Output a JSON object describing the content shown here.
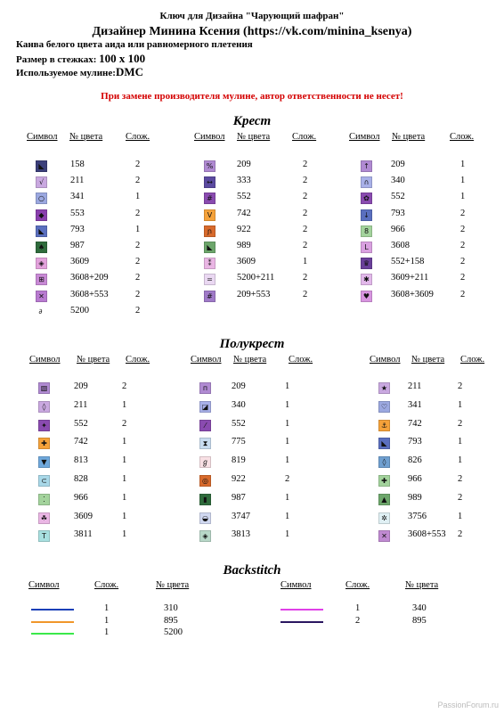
{
  "header": {
    "title": "Ключ для Дизайна \"Чарующий шафран\"",
    "designer": "Дизайнер Минина Ксения (https://vk.com/minina_ksenya)",
    "canvas": "Канва белого цвета аида или равномерного плетения",
    "size_label": "Размер в стежках:",
    "size_value": "100 x 100",
    "floss_label": "Используемое мулине:",
    "floss_value": "DMC",
    "warning": "При замене производителя мулине, автор ответственности не несет!"
  },
  "columns": {
    "symbol": "Символ",
    "color": "№ цвета",
    "complexity": "Слож."
  },
  "cross": {
    "title": "Крест",
    "col1": [
      {
        "color": "158",
        "n": "2",
        "bg": "#3b3f7a",
        "glyph": "◣"
      },
      {
        "color": "211",
        "n": "2",
        "bg": "#c9a8e0",
        "glyph": "√"
      },
      {
        "color": "341",
        "n": "1",
        "bg": "#9ba8e0",
        "glyph": "○"
      },
      {
        "color": "553",
        "n": "2",
        "bg": "#8a3fae",
        "glyph": "◆"
      },
      {
        "color": "793",
        "n": "1",
        "bg": "#5a6fbf",
        "glyph": "◣"
      },
      {
        "color": "987",
        "n": "2",
        "bg": "#2f6b3c",
        "glyph": "♠"
      },
      {
        "color": "3609",
        "n": "2",
        "bg": "#e3a2dc",
        "glyph": "◈"
      },
      {
        "color": "3608+209",
        "n": "2",
        "bg": "#c98ad6",
        "glyph": "⊞"
      },
      {
        "color": "3608+553",
        "n": "2",
        "bg": "#b87ad0",
        "glyph": "✕"
      },
      {
        "color": "5200",
        "n": "2",
        "bg": "#ffffff",
        "glyph": "∂"
      }
    ],
    "col2": [
      {
        "color": "209",
        "n": "2",
        "bg": "#b08ad2",
        "glyph": "%"
      },
      {
        "color": "333",
        "n": "2",
        "bg": "#5b4aa0",
        "glyph": "↔"
      },
      {
        "color": "552",
        "n": "2",
        "bg": "#8a4bb0",
        "glyph": "#"
      },
      {
        "color": "742",
        "n": "2",
        "bg": "#f5a23a",
        "glyph": "V"
      },
      {
        "color": "922",
        "n": "2",
        "bg": "#d86a2c",
        "glyph": "ɲ"
      },
      {
        "color": "989",
        "n": "2",
        "bg": "#6da66b",
        "glyph": "◣"
      },
      {
        "color": "3609",
        "n": "1",
        "bg": "#eab6e4",
        "glyph": "⁑"
      },
      {
        "color": "5200+211",
        "n": "2",
        "bg": "#ead8f2",
        "glyph": "="
      },
      {
        "color": "209+553",
        "n": "2",
        "bg": "#a07ac8",
        "glyph": "#"
      }
    ],
    "col3": [
      {
        "color": "209",
        "n": "1",
        "bg": "#b08ad2",
        "glyph": "↑"
      },
      {
        "color": "340",
        "n": "1",
        "bg": "#a8b0e8",
        "glyph": "∩"
      },
      {
        "color": "552",
        "n": "1",
        "bg": "#8a4bb0",
        "glyph": "✿"
      },
      {
        "color": "793",
        "n": "2",
        "bg": "#5a6fbf",
        "glyph": "↓"
      },
      {
        "color": "966",
        "n": "2",
        "bg": "#a3d39c",
        "glyph": "8"
      },
      {
        "color": "3608",
        "n": "2",
        "bg": "#d9a0e0",
        "glyph": "L"
      },
      {
        "color": "552+158",
        "n": "2",
        "bg": "#6a3f9a",
        "glyph": "♛"
      },
      {
        "color": "3609+211",
        "n": "2",
        "bg": "#e2b8ea",
        "glyph": "✱"
      },
      {
        "color": "3608+3609",
        "n": "2",
        "bg": "#d895e0",
        "glyph": "♥"
      }
    ]
  },
  "half": {
    "title": "Полукрест",
    "col1": [
      {
        "color": "209",
        "n": "2",
        "bg": "#b08ad2",
        "glyph": "▧"
      },
      {
        "color": "211",
        "n": "1",
        "bg": "#c9a8e0",
        "glyph": "◊"
      },
      {
        "color": "552",
        "n": "2",
        "bg": "#8a4bb0",
        "glyph": "✦"
      },
      {
        "color": "742",
        "n": "1",
        "bg": "#f5a23a",
        "glyph": "✚"
      },
      {
        "color": "813",
        "n": "1",
        "bg": "#6fa8dc",
        "glyph": "▼"
      },
      {
        "color": "828",
        "n": "1",
        "bg": "#a8d8e8",
        "glyph": "⊂"
      },
      {
        "color": "966",
        "n": "1",
        "bg": "#a3d39c",
        "glyph": "⁚"
      },
      {
        "color": "3609",
        "n": "1",
        "bg": "#eab6e4",
        "glyph": "☘"
      },
      {
        "color": "3811",
        "n": "1",
        "bg": "#a8e0e0",
        "glyph": "T"
      }
    ],
    "col2": [
      {
        "color": "209",
        "n": "1",
        "bg": "#b08ad2",
        "glyph": "п"
      },
      {
        "color": "340",
        "n": "1",
        "bg": "#a8b0e8",
        "glyph": "◪"
      },
      {
        "color": "552",
        "n": "1",
        "bg": "#8a4bb0",
        "glyph": "⁄"
      },
      {
        "color": "775",
        "n": "1",
        "bg": "#c8dcf0",
        "glyph": "⧗"
      },
      {
        "color": "819",
        "n": "1",
        "bg": "#f8e0e4",
        "glyph": "ℊ"
      },
      {
        "color": "922",
        "n": "2",
        "bg": "#d86a2c",
        "glyph": "◎"
      },
      {
        "color": "987",
        "n": "1",
        "bg": "#2f6b3c",
        "glyph": "▮"
      },
      {
        "color": "3747",
        "n": "1",
        "bg": "#d0d8f0",
        "glyph": "◒"
      },
      {
        "color": "3813",
        "n": "1",
        "bg": "#b8d8c8",
        "glyph": "◈"
      }
    ],
    "col3": [
      {
        "color": "211",
        "n": "2",
        "bg": "#c9a8e0",
        "glyph": "★"
      },
      {
        "color": "341",
        "n": "1",
        "bg": "#9ba8e0",
        "glyph": "♡"
      },
      {
        "color": "742",
        "n": "2",
        "bg": "#f5a23a",
        "glyph": "⚓"
      },
      {
        "color": "793",
        "n": "1",
        "bg": "#5a6fbf",
        "glyph": "◣"
      },
      {
        "color": "826",
        "n": "1",
        "bg": "#6f9fd0",
        "glyph": "◊"
      },
      {
        "color": "966",
        "n": "2",
        "bg": "#a3d39c",
        "glyph": "✚"
      },
      {
        "color": "989",
        "n": "2",
        "bg": "#6da66b",
        "glyph": "▲"
      },
      {
        "color": "3756",
        "n": "1",
        "bg": "#e0f0f4",
        "glyph": "✲"
      },
      {
        "color": "3608+553",
        "n": "2",
        "bg": "#c08ad2",
        "glyph": "✕"
      }
    ]
  },
  "backstitch": {
    "title": "Backstitch",
    "left": [
      {
        "n": "1",
        "color": "310",
        "line": "#1a3fb8"
      },
      {
        "n": "1",
        "color": "895",
        "line": "#f0962a"
      },
      {
        "n": "1",
        "color": "5200",
        "line": "#3ae84a"
      }
    ],
    "right": [
      {
        "n": "1",
        "color": "340",
        "line": "#e040e8"
      },
      {
        "n": "2",
        "color": "895",
        "line": "#2a1660"
      }
    ]
  },
  "footer": "PassionForum.ru"
}
